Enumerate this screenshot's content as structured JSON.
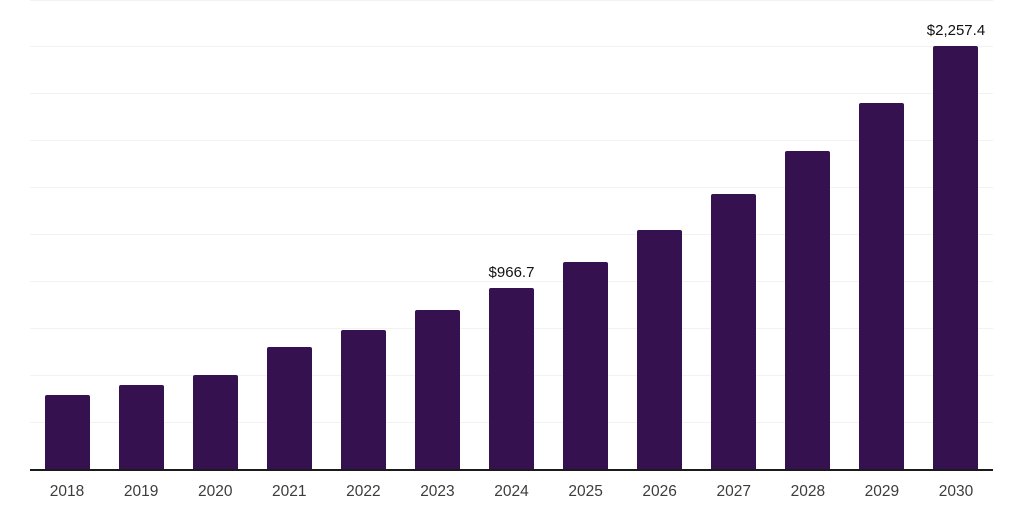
{
  "chart_data": {
    "type": "bar",
    "title": "",
    "xlabel": "",
    "ylabel": "",
    "categories": [
      "2018",
      "2019",
      "2020",
      "2021",
      "2022",
      "2023",
      "2024",
      "2025",
      "2026",
      "2027",
      "2028",
      "2029",
      "2030"
    ],
    "values": [
      393.0,
      449.0,
      499.0,
      648.0,
      740.0,
      848.0,
      966.7,
      1105.0,
      1275.0,
      1466.0,
      1694.0,
      1949.0,
      2257.4
    ],
    "labeled_points": [
      {
        "category": "2024",
        "label": "$966.7"
      },
      {
        "category": "2030",
        "label": "$2,257.4"
      }
    ],
    "ylim": [
      0,
      2500
    ],
    "gridline_step": 250,
    "grid": "horizontal-only",
    "y_tick_labels_visible": false,
    "legend": "none",
    "colors": {
      "bar": "#35124f",
      "axis_line": "#1a1a1a",
      "gridline": "#f2f2f2",
      "value_label": "#111111",
      "tick_label": "#3c3c3c",
      "background": "#ffffff"
    }
  }
}
